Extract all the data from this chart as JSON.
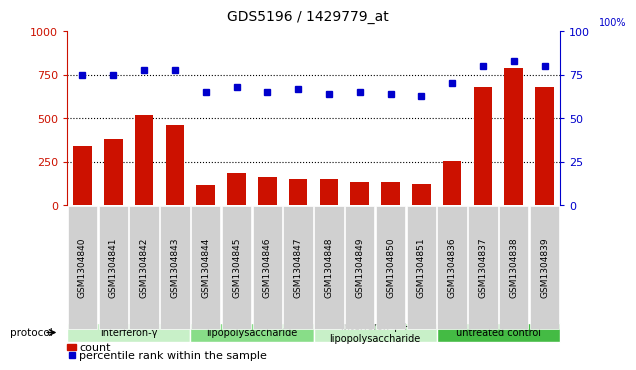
{
  "title": "GDS5196 / 1429779_at",
  "samples": [
    "GSM1304840",
    "GSM1304841",
    "GSM1304842",
    "GSM1304843",
    "GSM1304844",
    "GSM1304845",
    "GSM1304846",
    "GSM1304847",
    "GSM1304848",
    "GSM1304849",
    "GSM1304850",
    "GSM1304851",
    "GSM1304836",
    "GSM1304837",
    "GSM1304838",
    "GSM1304839"
  ],
  "counts": [
    340,
    380,
    520,
    460,
    120,
    185,
    165,
    150,
    150,
    135,
    135,
    125,
    255,
    680,
    790,
    680
  ],
  "percentile": [
    75,
    75,
    78,
    78,
    65,
    68,
    65,
    67,
    64,
    65,
    64,
    63,
    70,
    80,
    83,
    80
  ],
  "groups": [
    {
      "label": "interferon-γ",
      "start": 0,
      "end": 4,
      "color": "#c8f0c8"
    },
    {
      "label": "lipopolysaccharide",
      "start": 4,
      "end": 8,
      "color": "#88dd88"
    },
    {
      "label": "interferon-γ +\nlipopolysaccharide",
      "start": 8,
      "end": 12,
      "color": "#c8f0c8"
    },
    {
      "label": "untreated control",
      "start": 12,
      "end": 16,
      "color": "#44bb44"
    }
  ],
  "bar_color": "#cc1100",
  "dot_color": "#0000cc",
  "ylim_left": [
    0,
    1000
  ],
  "ylim_right": [
    0,
    100
  ],
  "yticks_left": [
    0,
    250,
    500,
    750,
    1000
  ],
  "yticks_right": [
    0,
    25,
    50,
    75,
    100
  ],
  "grid_values": [
    250,
    500,
    750
  ],
  "legend_count_label": "count",
  "legend_pct_label": "percentile rank within the sample",
  "protocol_label": "protocol",
  "right_axis_top_label": "100%"
}
